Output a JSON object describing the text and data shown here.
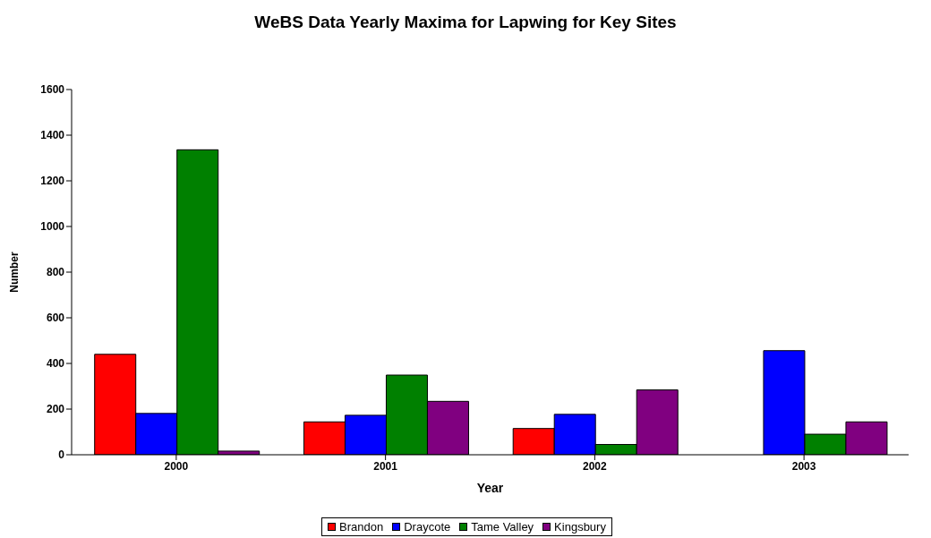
{
  "chart_data": {
    "type": "bar",
    "title": "WeBS Data Yearly Maxima for Lapwing for Key Sites",
    "xlabel": "Year",
    "ylabel": "Number",
    "categories": [
      "2000",
      "2001",
      "2002",
      "2003"
    ],
    "series": [
      {
        "name": "Brandon",
        "color": "#ff0000",
        "values": [
          440,
          144,
          115,
          null
        ]
      },
      {
        "name": "Draycote",
        "color": "#0000ff",
        "values": [
          181,
          173,
          177,
          456
        ]
      },
      {
        "name": "Tame Valley",
        "color": "#008000",
        "values": [
          1336,
          349,
          45,
          90
        ]
      },
      {
        "name": "Kingsbury",
        "color": "#800080",
        "values": [
          16,
          234,
          284,
          144
        ]
      }
    ],
    "ylim": [
      0,
      1600
    ],
    "yticks": [
      0,
      200,
      400,
      600,
      800,
      1000,
      1200,
      1400,
      1600
    ],
    "grid": false,
    "legend": "bottom"
  }
}
